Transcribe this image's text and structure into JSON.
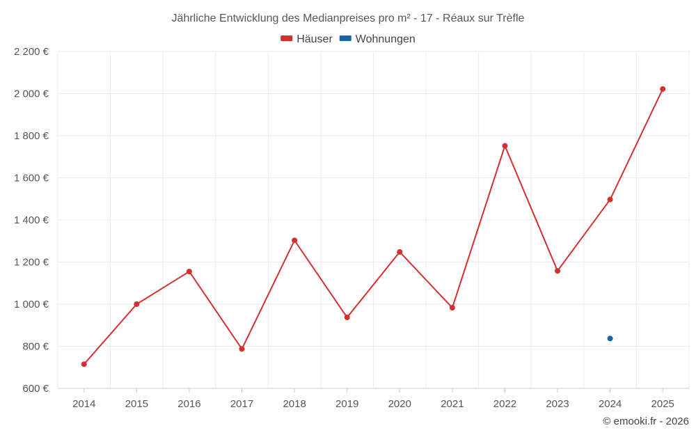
{
  "chart_data": {
    "type": "line",
    "title": "Jährliche Entwicklung des Medianpreises pro m² - 17 - Réaux sur Trèfle",
    "categories": [
      "2014",
      "2015",
      "2016",
      "2017",
      "2018",
      "2019",
      "2020",
      "2021",
      "2022",
      "2023",
      "2024",
      "2025"
    ],
    "ylim": [
      600,
      2200
    ],
    "yticks": [
      600,
      800,
      1000,
      1200,
      1400,
      1600,
      1800,
      2000,
      2200
    ],
    "ytick_labels": [
      "600 €",
      "800 €",
      "1 000 €",
      "1 200 €",
      "1 400 €",
      "1 600 €",
      "1 800 €",
      "2 000 €",
      "2 200 €"
    ],
    "grid": true,
    "legend_position": "top-center",
    "series": [
      {
        "name": "Häuser",
        "color": "#d32f2f",
        "values": [
          715,
          1000,
          1155,
          787,
          1303,
          937,
          1248,
          983,
          1752,
          1158,
          1497,
          2022
        ]
      },
      {
        "name": "Wohnungen",
        "color": "#1565a8",
        "values": [
          null,
          null,
          null,
          null,
          null,
          null,
          null,
          null,
          null,
          null,
          837,
          null
        ]
      }
    ],
    "credit": "© emooki.fr - 2026"
  }
}
